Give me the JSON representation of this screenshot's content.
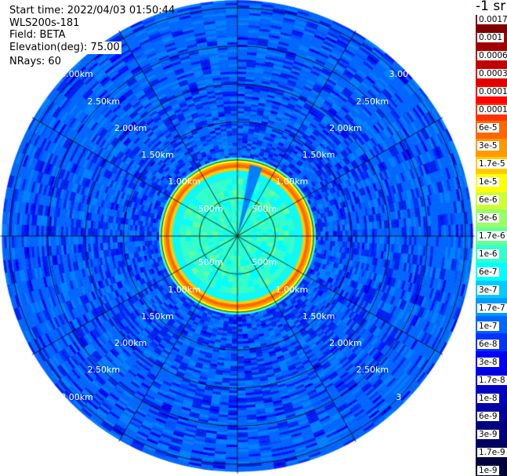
{
  "header": {
    "start_time": "Start time: 2022/04/03 01:50:44",
    "instrument": "WLS200s-181",
    "field": "Field: BETA",
    "elevation": "Elevation(deg): 75.00",
    "nrays": "NRays: 60"
  },
  "colorbar": {
    "unit_label": "-1 sr",
    "ticks": [
      "0.0017",
      "0.001",
      "0.0006",
      "0.0003",
      "0.00017",
      "0.0001",
      "6e-5",
      "3e-5",
      "1.7e-5",
      "1e-5",
      "6e-6",
      "3e-6",
      "1.7e-6",
      "1e-6",
      "6e-7",
      "3e-7",
      "1.7e-7",
      "1e-7",
      "6e-8",
      "3e-8",
      "1.7e-8",
      "1e-8",
      "6e-9",
      "3e-9",
      "1.7e-9",
      "1e-9"
    ],
    "colors": [
      "#800000",
      "#a00000",
      "#c00000",
      "#e00000",
      "#ff0000",
      "#ff3300",
      "#ff6600",
      "#ff9900",
      "#ffcc00",
      "#ffff00",
      "#ccff33",
      "#99ff66",
      "#66ff99",
      "#33ffcc",
      "#00ffff",
      "#00ccff",
      "#0099ff",
      "#0066ff",
      "#0033ff",
      "#0000ff",
      "#0000e0",
      "#0000c0",
      "#0000a0",
      "#000080",
      "#000060",
      "#000040"
    ]
  },
  "chart_data": {
    "type": "heatmap",
    "projection": "polar (PPI scan)",
    "field": "BETA",
    "n_rays": 60,
    "range_rings_km": [
      0.5,
      1.0,
      1.5,
      2.0,
      2.5,
      3.0
    ],
    "ring_labels": {
      "upper_left": [
        "500m",
        "1.00km",
        "1.50km",
        "2.00km",
        "2.50km",
        "3.00km"
      ],
      "upper_right": [
        "500m",
        "1.00km",
        "1.50km",
        "2.00km",
        "2.50km",
        "3.00"
      ],
      "lower_left": [
        "500m",
        "1.00km",
        "1.50km",
        "2.00km",
        "2.50km",
        "3.00km"
      ],
      "lower_right": [
        "500m",
        "1.00km",
        "1.50km",
        "2.00km",
        "2.50km",
        "3"
      ]
    },
    "spokes_deg": [
      0,
      30,
      60,
      90,
      120,
      150,
      180,
      210,
      240,
      270,
      300,
      330
    ],
    "max_range_km": 3.1,
    "range_profile": [
      {
        "range_km": [
          0.0,
          0.55
        ],
        "value": "3e-7"
      },
      {
        "range_km": [
          0.55,
          0.78
        ],
        "value": "6e-7"
      },
      {
        "range_km": [
          0.78,
          0.88
        ],
        "value": "1e-6"
      },
      {
        "range_km": [
          0.88,
          0.93
        ],
        "value": "1e-5"
      },
      {
        "range_km": [
          0.93,
          0.96
        ],
        "value": "6e-5"
      },
      {
        "range_km": [
          0.96,
          1.0
        ],
        "value": "1e-5"
      },
      {
        "range_km": [
          1.0,
          1.03
        ],
        "value": "1e-6"
      },
      {
        "range_km": [
          1.03,
          3.1
        ],
        "value": "3e-8 to 1e-8 (speckled)"
      }
    ],
    "low_signal_sector_deg": [
      10,
      20
    ]
  }
}
